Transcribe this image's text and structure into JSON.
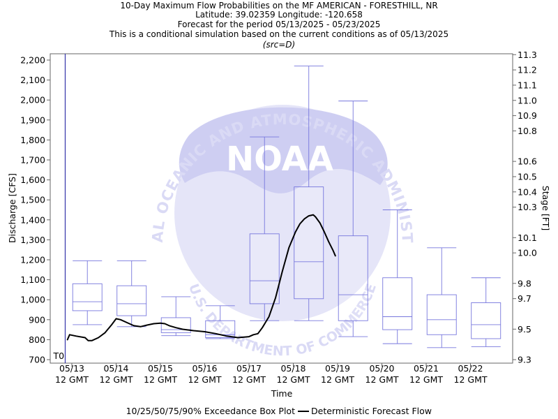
{
  "chart_data": {
    "type": "box",
    "title_lines": [
      "10-Day Maximum Flow Probabilities on the MF AMERICAN - FORESTHILL, NR",
      "Latitude: 39.02359 Longitude: -120.658",
      "Forecast for the period 05/13/2025 - 05/23/2025",
      "This is a conditional simulation based on the current conditions as of 05/13/2025",
      "(src=D)"
    ],
    "xlabel": "Time",
    "ylabel_left": "Discharge [CFS]",
    "ylabel_right": "Stage [FT]",
    "x_range": [
      0,
      10
    ],
    "left_ylim": [
      700,
      2250
    ],
    "right_ylim": [
      9.3,
      11.33
    ],
    "left_ticks": [
      700,
      800,
      900,
      1000,
      1100,
      1200,
      1300,
      1400,
      1500,
      1600,
      1700,
      1800,
      1900,
      2000,
      2100,
      2200
    ],
    "left_tick_labels": [
      "700",
      "800",
      "900",
      "1,000",
      "1,100",
      "1,200",
      "1,300",
      "1,400",
      "1,500",
      "1,600",
      "1,700",
      "1,800",
      "1,900",
      "2,000",
      "2,100",
      "2,200"
    ],
    "right_ticks": [
      9.3,
      9.5,
      9.7,
      9.8,
      10.0,
      10.1,
      10.3,
      10.4,
      10.5,
      10.6,
      10.8,
      10.9,
      11.0,
      11.1,
      11.2,
      11.3
    ],
    "right_tick_labels": [
      "9.3",
      "9.5",
      "9.7",
      "9.8",
      "10.0",
      "10.1",
      "10.3",
      "10.4",
      "10.5",
      "10.6",
      "10.8",
      "10.9",
      "11.0",
      "11.1",
      "11.2",
      "11.3"
    ],
    "x_ticks": [
      0,
      1,
      2,
      3,
      4,
      5,
      6,
      7,
      8,
      9
    ],
    "x_tick_labels": [
      [
        "05/13",
        "12 GMT"
      ],
      [
        "05/14",
        "12 GMT"
      ],
      [
        "05/15",
        "12 GMT"
      ],
      [
        "05/16",
        "12 GMT"
      ],
      [
        "05/17",
        "12 GMT"
      ],
      [
        "05/18",
        "12 GMT"
      ],
      [
        "05/19",
        "12 GMT"
      ],
      [
        "05/20",
        "12 GMT"
      ],
      [
        "05/21",
        "12 GMT"
      ],
      [
        "05/22",
        "12 GMT"
      ]
    ],
    "t0_label": "T0",
    "t0_x": -0.15,
    "boxes": [
      {
        "x": 0.35,
        "p10": 875,
        "p25": 945,
        "p50": 990,
        "p75": 1080,
        "p90": 1195
      },
      {
        "x": 1.35,
        "p10": 865,
        "p25": 920,
        "p50": 980,
        "p75": 1070,
        "p90": 1195
      },
      {
        "x": 2.35,
        "p10": 820,
        "p25": 835,
        "p50": 850,
        "p75": 910,
        "p90": 1015
      },
      {
        "x": 3.35,
        "p10": 805,
        "p25": 810,
        "p50": 825,
        "p75": 895,
        "p90": 970
      },
      {
        "x": 4.35,
        "p10": 895,
        "p25": 980,
        "p50": 1095,
        "p75": 1330,
        "p90": 1815
      },
      {
        "x": 5.35,
        "p10": 895,
        "p25": 1005,
        "p50": 1190,
        "p75": 1565,
        "p90": 2170
      },
      {
        "x": 6.35,
        "p10": 815,
        "p25": 895,
        "p50": 1025,
        "p75": 1320,
        "p90": 1995
      },
      {
        "x": 7.35,
        "p10": 780,
        "p25": 850,
        "p50": 915,
        "p75": 1110,
        "p90": 1450
      },
      {
        "x": 8.35,
        "p10": 760,
        "p25": 825,
        "p50": 900,
        "p75": 1025,
        "p90": 1260
      },
      {
        "x": 9.35,
        "p10": 765,
        "p25": 805,
        "p50": 875,
        "p75": 985,
        "p90": 1110
      }
    ],
    "deterministic_flow": {
      "x": [
        -0.1,
        -0.05,
        0.1,
        0.3,
        0.37,
        0.45,
        0.6,
        0.75,
        0.9,
        1.0,
        1.1,
        1.25,
        1.4,
        1.55,
        1.7,
        1.85,
        2.0,
        2.1,
        2.2,
        2.35,
        2.5,
        2.75,
        3.0,
        3.25,
        3.5,
        3.75,
        4.0,
        4.1,
        4.2,
        4.3,
        4.45,
        4.6,
        4.75,
        4.9,
        5.05,
        5.15,
        5.25,
        5.35,
        5.45,
        5.5,
        5.6,
        5.7,
        5.8,
        5.9,
        5.95
      ],
      "y": [
        800,
        825,
        818,
        810,
        795,
        795,
        810,
        835,
        875,
        905,
        900,
        885,
        870,
        865,
        873,
        880,
        883,
        880,
        870,
        860,
        852,
        845,
        840,
        830,
        818,
        810,
        815,
        825,
        830,
        860,
        915,
        1010,
        1140,
        1260,
        1340,
        1380,
        1405,
        1420,
        1425,
        1415,
        1385,
        1340,
        1290,
        1245,
        1220
      ]
    },
    "legend": [
      "10/25/50/75/90% Exceedance Box Plot",
      "Deterministic Forecast Flow"
    ],
    "legend_placement": "bottom-center",
    "grid": false,
    "box_color": "#7777dd",
    "line_color": "#000000",
    "axis_color": "#666666",
    "t0_line_color": "#3333aa"
  },
  "watermark": {
    "logo_text": "NOAA",
    "ring_text": "NATIONAL OCEANIC AND ATMOSPHERIC ADMINISTRATION",
    "bottom_text": "U.S. DEPARTMENT OF COMMERCE",
    "colors": {
      "dark": "#ccccf2",
      "light": "#e4e4f8"
    }
  }
}
